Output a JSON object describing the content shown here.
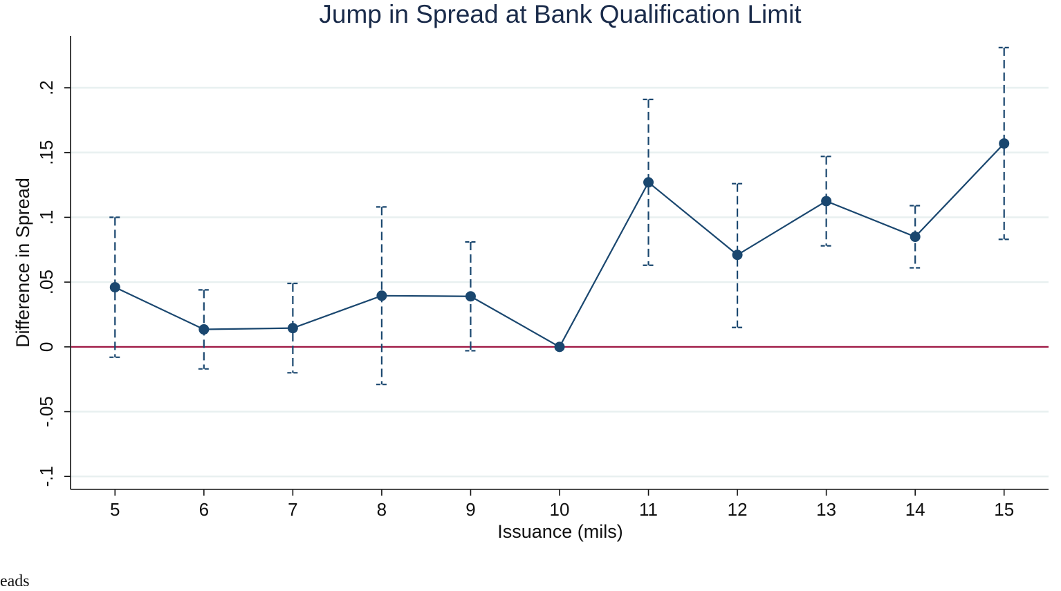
{
  "chart_data": {
    "type": "line",
    "title": "Jump in Spread at Bank Qualification Limit",
    "xlabel": "Issuance (mils)",
    "ylabel": "Difference in Spread",
    "x": [
      5,
      6,
      7,
      8,
      9,
      10,
      11,
      12,
      13,
      14,
      15
    ],
    "series": [
      {
        "values": [
          0.046,
          0.0135,
          0.0145,
          0.0395,
          0.039,
          0.0,
          0.127,
          0.071,
          0.1125,
          0.085,
          0.157
        ],
        "ci_low": [
          -0.008,
          -0.017,
          -0.02,
          -0.029,
          -0.003,
          0.0,
          0.063,
          0.015,
          0.078,
          0.061,
          0.083
        ],
        "ci_high": [
          0.1,
          0.044,
          0.049,
          0.108,
          0.081,
          0.0,
          0.191,
          0.126,
          0.147,
          0.109,
          0.231
        ]
      }
    ],
    "reference_line": {
      "y": 0,
      "color": "#990c3a"
    },
    "xticks": [
      "5",
      "6",
      "7",
      "8",
      "9",
      "10",
      "11",
      "12",
      "13",
      "14",
      "15"
    ],
    "yticks": [
      {
        "value": -0.1,
        "label": "-.1"
      },
      {
        "value": -0.05,
        "label": "-.05"
      },
      {
        "value": 0,
        "label": "0"
      },
      {
        "value": 0.05,
        "label": ".05"
      },
      {
        "value": 0.1,
        "label": ".1"
      },
      {
        "value": 0.15,
        "label": ".15"
      },
      {
        "value": 0.2,
        "label": ".2"
      }
    ],
    "xlim": [
      4.5,
      15.5
    ],
    "ylim": [
      -0.11,
      0.24
    ],
    "grid": true,
    "colors": {
      "series": "#1a476f",
      "grid": "#e8f0f0",
      "title": "#1a2b4a"
    }
  },
  "footnote": "preads"
}
